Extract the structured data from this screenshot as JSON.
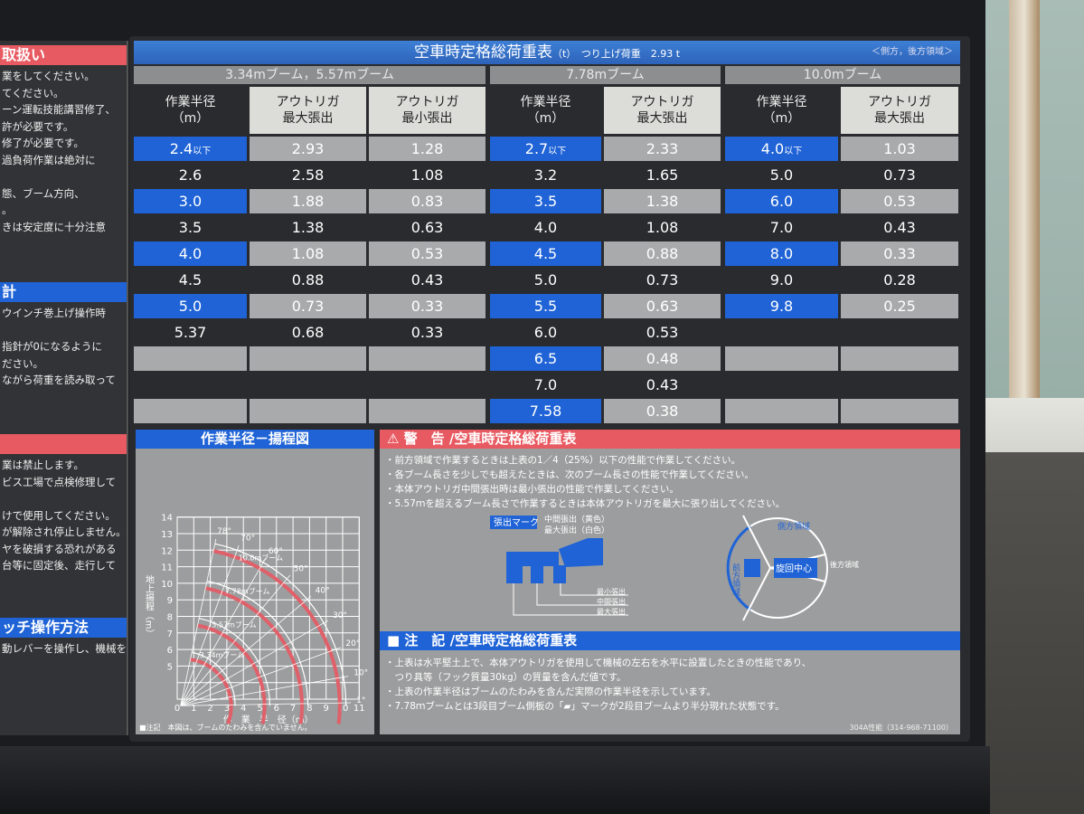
{
  "title": "空車時定格総荷重表",
  "title_unit": "（t）",
  "title_lift": "つり上げ荷重　2.93 t",
  "title_side": "＜側方，後方領域＞",
  "groups": [
    "3.34mブーム，5.57mブーム",
    "7.78mブーム",
    "10.0mブーム"
  ],
  "headers": {
    "radius": "作業半径\n（m）",
    "max": "アウトリガ\n最大張出",
    "min": "アウトリガ\n最小張出"
  },
  "table": {
    "boom_334_557": [
      [
        "2.4",
        "2.93",
        "1.28"
      ],
      [
        "2.6",
        "2.58",
        "1.08"
      ],
      [
        "3.0",
        "1.88",
        "0.83"
      ],
      [
        "3.5",
        "1.38",
        "0.63"
      ],
      [
        "4.0",
        "1.08",
        "0.53"
      ],
      [
        "4.5",
        "0.88",
        "0.43"
      ],
      [
        "5.0",
        "0.73",
        "0.33"
      ],
      [
        "5.37",
        "0.68",
        "0.33"
      ],
      [
        "",
        "",
        ""
      ],
      [
        "",
        "",
        ""
      ],
      [
        "",
        "",
        ""
      ]
    ],
    "boom_778": [
      [
        "2.7",
        "2.33"
      ],
      [
        "3.2",
        "1.65"
      ],
      [
        "3.5",
        "1.38"
      ],
      [
        "4.0",
        "1.08"
      ],
      [
        "4.5",
        "0.88"
      ],
      [
        "5.0",
        "0.73"
      ],
      [
        "5.5",
        "0.63"
      ],
      [
        "6.0",
        "0.53"
      ],
      [
        "6.5",
        "0.48"
      ],
      [
        "7.0",
        "0.43"
      ],
      [
        "7.58",
        "0.38"
      ]
    ],
    "boom_100": [
      [
        "4.0",
        "1.03"
      ],
      [
        "5.0",
        "0.73"
      ],
      [
        "6.0",
        "0.53"
      ],
      [
        "7.0",
        "0.43"
      ],
      [
        "8.0",
        "0.33"
      ],
      [
        "9.0",
        "0.28"
      ],
      [
        "9.8",
        "0.25"
      ],
      [
        "",
        ""
      ],
      [
        "",
        ""
      ],
      [
        "",
        ""
      ],
      [
        "",
        ""
      ]
    ],
    "below_suffix": "以下"
  },
  "left_panel": {
    "heads": [
      "取扱い",
      "計",
      "",
      "ッチ操作方法"
    ],
    "lines_top": [
      "業をしてください。",
      "てください。",
      "ーン運転技能講習修了、",
      "許が必要です。",
      "修了が必要です。",
      "過負荷作業は絶対に",
      "",
      "態、ブーム方向、",
      "。",
      "きは安定度に十分注意"
    ],
    "lines_mid": [
      "ウインチ巻上げ操作時",
      "",
      "指針が0になるように",
      "ださい。",
      "ながら荷重を読み取って"
    ],
    "lines_low": [
      "業は禁止します。",
      "ビス工場で点検修理して",
      "",
      "けで使用してください。",
      "が解除され停止しません。",
      "ヤを破損する恐れがある",
      "台等に固定後、走行して"
    ],
    "lines_bottom": [
      "動レバーを操作し、機械を"
    ]
  },
  "chart": {
    "title": "作業半径－揚程図",
    "xlabel": "作　業　半　径（m）",
    "ylabel": "地上揚程（m）",
    "xticks": [
      "0",
      "1",
      "2",
      "3",
      "4",
      "5",
      "6",
      "7",
      "8",
      "9",
      "10",
      "11"
    ],
    "yticks": [
      "5",
      "6",
      "7",
      "8",
      "9",
      "10",
      "11",
      "12",
      "13",
      "14"
    ],
    "angles": [
      "78°",
      "70°",
      "60°",
      "50°",
      "40°",
      "30°",
      "20°",
      "10°",
      "1°"
    ],
    "booms": [
      "3.34mブーム",
      "5.57mブーム",
      "7.78mブーム",
      "10.0mブーム"
    ],
    "footnote": "■注記　本図は、ブームのたわみを含んでいません。",
    "colors": {
      "grid": "#ffffff",
      "load_arc": "#e0606a"
    }
  },
  "warning": {
    "icon": "warning-triangle-icon",
    "title": "警　告 /空車時定格総荷重表",
    "lines": [
      "・前方領域で作業するときは上表の1／4（25%）以下の性能で作業してください。",
      "・各ブーム長さを少しでも超えたときは、次のブーム長さの性能で作業してください。",
      "・本体アウトリガ中間張出時は最小張出の性能で作業してください。",
      "・5.57ｍを超えるブーム長さで作業するときは本体アウトリガを最大に張り出してください。"
    ],
    "mark_label": "張出マーク",
    "mark_mid": "中間張出（黄色）",
    "mark_max": "最大張出（白色）",
    "ext_min": "最小張出",
    "ext_mid": "中間張出",
    "ext_max": "最大張出",
    "front": "前方領域",
    "side": "側方領域",
    "rear": "後方領域",
    "center": "旋回中心"
  },
  "notes": {
    "title": "注　記 /空車時定格総荷重表",
    "lines": [
      "・上表は水平堅土上で、本体アウトリガを使用して機械の左右を水平に設置したときの性能であり、",
      "　つり具等（フック質量30kg）の質量を含んだ値です。",
      "・上表の作業半径はブームのたわみを含んだ実際の作業半径を示しています。",
      "・7.78ｍブームとは3段目ブーム側板の「▰」マークが2段目ブームより半分現れた状態です。"
    ],
    "code": "304A性能（314-968-71100）"
  },
  "colors": {
    "blue": "#1f63d6",
    "red": "#e85a62",
    "gray_cell": "#a9aaab",
    "panel": "#2a2b2e"
  }
}
